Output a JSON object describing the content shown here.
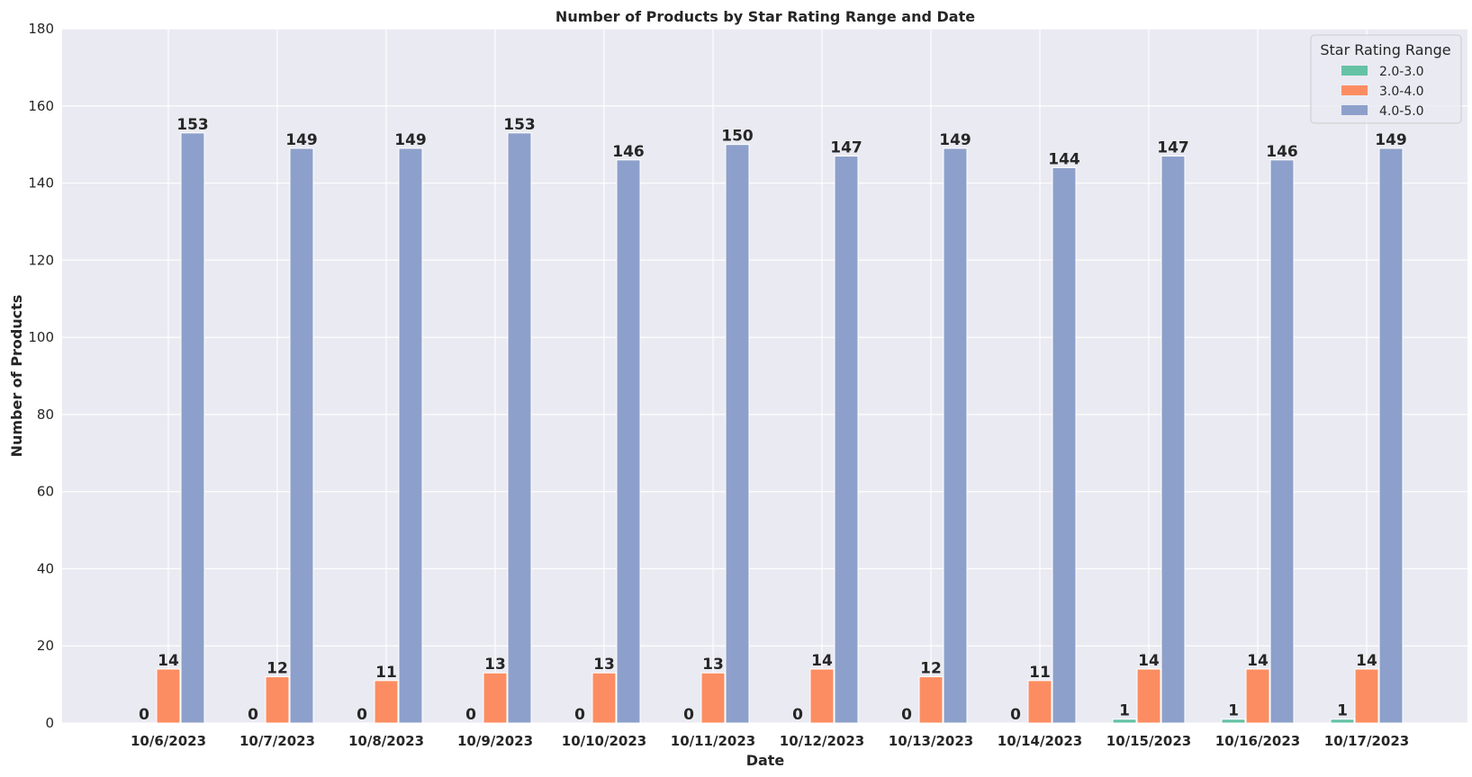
{
  "chart_data": {
    "type": "bar",
    "title": "Number of Products by Star Rating Range and Date",
    "xlabel": "Date",
    "ylabel": "Number of Products",
    "ylim": [
      0,
      180
    ],
    "yticks": [
      0,
      20,
      40,
      60,
      80,
      100,
      120,
      140,
      160,
      180
    ],
    "grid": true,
    "legend_title": "Star Rating Range",
    "legend_position": "top-right",
    "categories": [
      "10/6/2023",
      "10/7/2023",
      "10/8/2023",
      "10/9/2023",
      "10/10/2023",
      "10/11/2023",
      "10/12/2023",
      "10/13/2023",
      "10/14/2023",
      "10/15/2023",
      "10/16/2023",
      "10/17/2023"
    ],
    "series": [
      {
        "name": "2.0-3.0",
        "color": "#66c2a5",
        "values": [
          0,
          0,
          0,
          0,
          0,
          0,
          0,
          0,
          0,
          1,
          1,
          1
        ]
      },
      {
        "name": "3.0-4.0",
        "color": "#fc8d62",
        "values": [
          14,
          12,
          11,
          13,
          13,
          13,
          14,
          12,
          11,
          14,
          14,
          14
        ]
      },
      {
        "name": "4.0-5.0",
        "color": "#8da0cb",
        "values": [
          153,
          149,
          149,
          153,
          146,
          150,
          147,
          149,
          144,
          147,
          146,
          149
        ]
      }
    ]
  }
}
